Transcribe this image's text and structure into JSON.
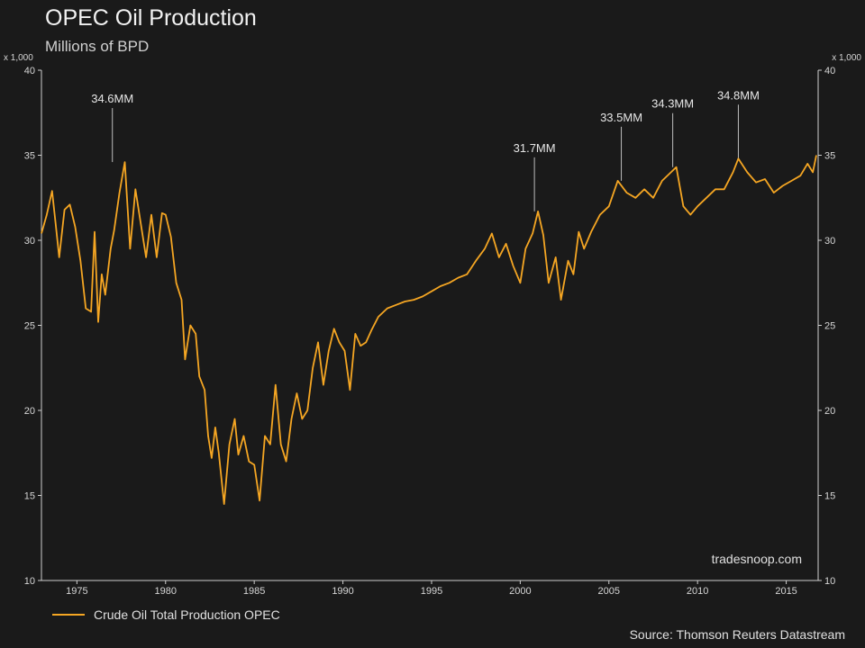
{
  "chart_data": {
    "type": "line",
    "title": "OPEC Oil Production",
    "subtitle": "Millions of BPD",
    "y_multiplier_label": "x 1,000",
    "xlim": [
      1973.0,
      2016.8
    ],
    "ylim": [
      10,
      40
    ],
    "x_ticks": [
      "1975",
      "1980",
      "1985",
      "1990",
      "1995",
      "2000",
      "2005",
      "2010",
      "2015"
    ],
    "y_ticks": [
      "10",
      "15",
      "20",
      "25",
      "30",
      "35",
      "40"
    ],
    "grid": false,
    "color": "#f5a623",
    "series": [
      {
        "name": "Crude Oil Total Production OPEC",
        "x": [
          1973.0,
          1973.3,
          1973.6,
          1973.8,
          1974.0,
          1974.3,
          1974.6,
          1974.9,
          1975.2,
          1975.5,
          1975.8,
          1976.0,
          1976.2,
          1976.4,
          1976.6,
          1976.9,
          1977.1,
          1977.4,
          1977.7,
          1978.0,
          1978.3,
          1978.6,
          1978.9,
          1979.2,
          1979.5,
          1979.8,
          1980.0,
          1980.3,
          1980.6,
          1980.9,
          1981.1,
          1981.4,
          1981.7,
          1981.9,
          1982.2,
          1982.4,
          1982.6,
          1982.8,
          1983.0,
          1983.3,
          1983.6,
          1983.9,
          1984.1,
          1984.4,
          1984.7,
          1985.0,
          1985.3,
          1985.6,
          1985.9,
          1986.2,
          1986.5,
          1986.8,
          1987.1,
          1987.4,
          1987.7,
          1988.0,
          1988.3,
          1988.6,
          1988.9,
          1989.2,
          1989.5,
          1989.8,
          1990.1,
          1990.4,
          1990.7,
          1991.0,
          1991.3,
          1991.6,
          1992.0,
          1992.5,
          1993.0,
          1993.5,
          1994.0,
          1994.5,
          1995.0,
          1995.5,
          1996.0,
          1996.5,
          1997.0,
          1997.5,
          1998.0,
          1998.4,
          1998.8,
          1999.2,
          1999.6,
          2000.0,
          2000.3,
          2000.7,
          2001.0,
          2001.3,
          2001.6,
          2002.0,
          2002.3,
          2002.7,
          2003.0,
          2003.3,
          2003.6,
          2004.0,
          2004.5,
          2005.0,
          2005.5,
          2006.0,
          2006.5,
          2007.0,
          2007.5,
          2008.0,
          2008.5,
          2008.8,
          2009.2,
          2009.6,
          2010.0,
          2010.5,
          2011.0,
          2011.5,
          2012.0,
          2012.3,
          2012.8,
          2013.3,
          2013.8,
          2014.3,
          2014.8,
          2015.3,
          2015.8,
          2016.2,
          2016.5,
          2016.7
        ],
        "values": [
          30.4,
          31.5,
          32.9,
          31.0,
          29.0,
          31.8,
          32.1,
          30.8,
          28.8,
          26.0,
          25.8,
          30.5,
          25.2,
          28.0,
          26.8,
          29.5,
          30.6,
          32.8,
          34.6,
          29.5,
          33.0,
          31.0,
          29.0,
          31.5,
          29.0,
          31.6,
          31.5,
          30.2,
          27.5,
          26.5,
          23.0,
          25.0,
          24.5,
          22.0,
          21.2,
          18.5,
          17.2,
          19.0,
          17.5,
          14.5,
          18.0,
          19.5,
          17.4,
          18.5,
          17.0,
          16.8,
          14.7,
          18.5,
          18.0,
          21.5,
          18.0,
          17.0,
          19.5,
          21.0,
          19.5,
          20.0,
          22.5,
          24.0,
          21.5,
          23.5,
          24.8,
          24.0,
          23.5,
          21.2,
          24.5,
          23.8,
          24.0,
          24.7,
          25.5,
          26.0,
          26.2,
          26.4,
          26.5,
          26.7,
          27.0,
          27.3,
          27.5,
          27.8,
          28.0,
          28.8,
          29.5,
          30.4,
          29.0,
          29.8,
          28.5,
          27.5,
          29.5,
          30.4,
          31.7,
          30.3,
          27.5,
          29.0,
          26.5,
          28.8,
          28.0,
          30.5,
          29.5,
          30.5,
          31.5,
          32.0,
          33.5,
          32.8,
          32.5,
          33.0,
          32.5,
          33.5,
          34.0,
          34.3,
          32.0,
          31.5,
          32.0,
          32.5,
          33.0,
          33.0,
          34.0,
          34.8,
          34.0,
          33.4,
          33.6,
          32.8,
          33.2,
          33.5,
          33.8,
          34.5,
          34.0,
          35.0
        ],
        "annotations": [
          {
            "x": 1977.0,
            "y": 34.6,
            "label": "34.6MM"
          },
          {
            "x": 2000.8,
            "y": 31.7,
            "label": "31.7MM"
          },
          {
            "x": 2005.7,
            "y": 33.5,
            "label": "33.5MM"
          },
          {
            "x": 2008.6,
            "y": 34.3,
            "label": "34.3MM"
          },
          {
            "x": 2012.3,
            "y": 34.8,
            "label": "34.8MM"
          }
        ]
      }
    ]
  },
  "watermark": "tradesnoop.com",
  "legend": {
    "label": "Crude Oil Total Production OPEC"
  },
  "source": "Source: Thomson Reuters Datastream"
}
